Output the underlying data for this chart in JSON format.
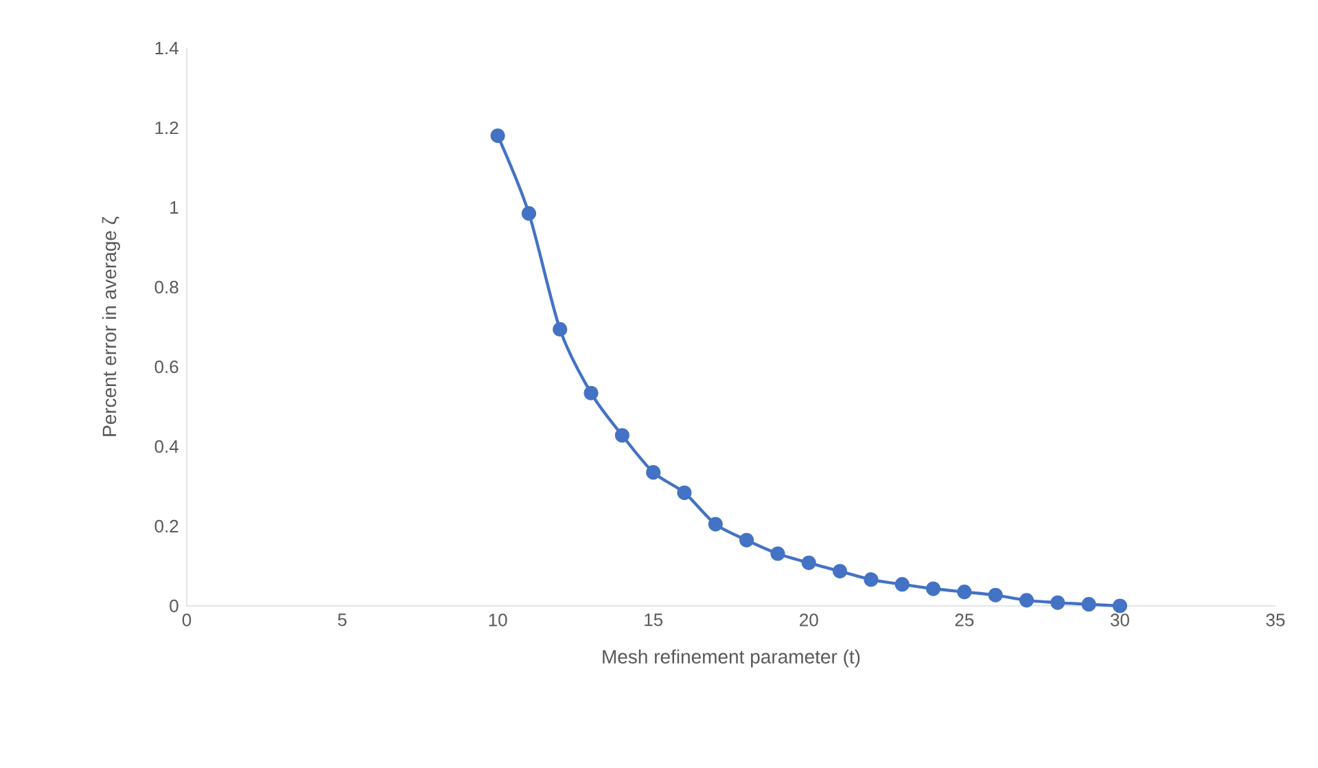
{
  "chart_data": {
    "type": "line",
    "xlabel": "Mesh refinement parameter (t)",
    "ylabel": "Percent error in average ζ",
    "x": [
      10,
      11,
      12,
      13,
      14,
      15,
      16,
      17,
      18,
      19,
      20,
      21,
      22,
      23,
      24,
      25,
      26,
      27,
      28,
      29,
      30
    ],
    "series": [
      {
        "color": "#4472c4",
        "values": [
          1.18,
          0.985,
          0.694,
          0.534,
          0.428,
          0.335,
          0.284,
          0.205,
          0.165,
          0.131,
          0.108,
          0.087,
          0.066,
          0.054,
          0.043,
          0.035,
          0.027,
          0.014,
          0.008,
          0.004,
          0.0
        ]
      }
    ],
    "xlim": [
      0,
      35
    ],
    "ylim": [
      0,
      1.4
    ],
    "xticks": [
      0,
      5,
      10,
      15,
      20,
      25,
      30,
      35
    ],
    "yticks": [
      0,
      0.2,
      0.4,
      0.6,
      0.8,
      1,
      1.2,
      1.4
    ],
    "grid": false,
    "marker": "circle",
    "line_style": "solid"
  }
}
